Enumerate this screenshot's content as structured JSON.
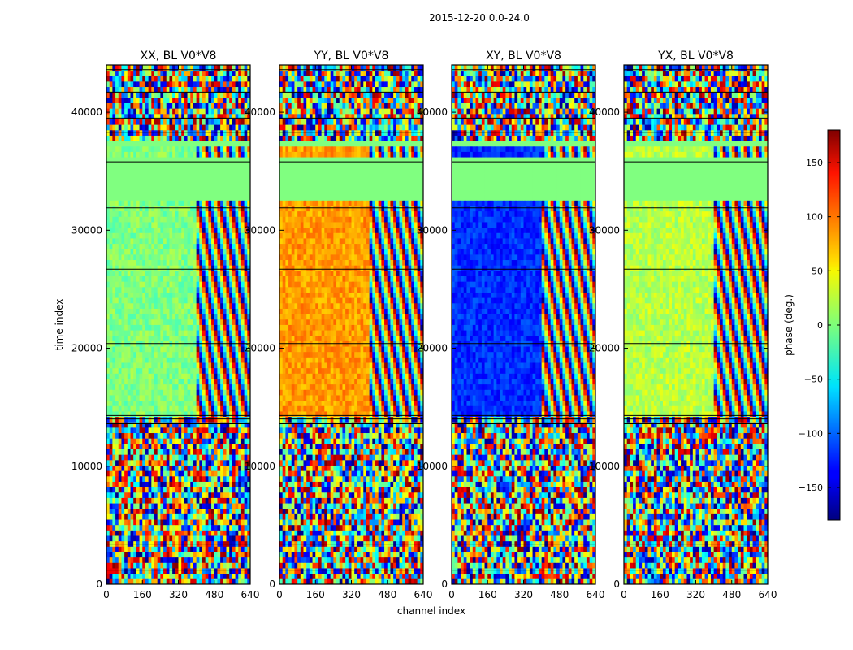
{
  "figure": {
    "suptitle": "2015-12-20 0.0-24.0"
  },
  "chart_data": [
    {
      "type": "heatmap",
      "title": "XX, BL V0*V8",
      "xlabel": "",
      "ylabel": "time index",
      "xlim": [
        0,
        640
      ],
      "ylim": [
        0,
        44000
      ],
      "xticks": [
        0,
        160,
        320,
        480,
        640
      ],
      "yticks": [
        0,
        10000,
        20000,
        30000,
        40000
      ],
      "colormap": "jet",
      "background_phase": 0,
      "fringe_from_channel": 400
    },
    {
      "type": "heatmap",
      "title": "YY, BL V0*V8",
      "xlabel": "channel index",
      "ylabel": "",
      "xlim": [
        0,
        640
      ],
      "ylim": [
        0,
        44000
      ],
      "xticks": [
        0,
        160,
        320,
        480,
        640
      ],
      "yticks": [
        0,
        10000,
        20000,
        30000,
        40000
      ],
      "colormap": "jet",
      "background_phase": 80,
      "fringe_from_channel": 400
    },
    {
      "type": "heatmap",
      "title": "XY, BL V0*V8",
      "xlabel": "",
      "ylabel": "",
      "xlim": [
        0,
        640
      ],
      "ylim": [
        0,
        44000
      ],
      "xticks": [
        0,
        160,
        320,
        480,
        640
      ],
      "yticks": [
        0,
        10000,
        20000,
        30000,
        40000
      ],
      "colormap": "jet",
      "background_phase": -120,
      "fringe_from_channel": 400
    },
    {
      "type": "heatmap",
      "title": "YX, BL V0*V8",
      "xlabel": "",
      "ylabel": "",
      "xlim": [
        0,
        640
      ],
      "ylim": [
        0,
        44000
      ],
      "xticks": [
        0,
        160,
        320,
        480,
        640
      ],
      "yticks": [
        0,
        10000,
        20000,
        30000,
        40000
      ],
      "colormap": "jet",
      "background_phase": 20,
      "fringe_from_channel": 400
    }
  ],
  "colorbar": {
    "label": "phase (deg.)",
    "range": [
      -180,
      180
    ],
    "ticks": [
      -150,
      -100,
      -50,
      0,
      50,
      100,
      150
    ],
    "tick_labels": [
      "−150",
      "−100",
      "−50",
      "0",
      "50",
      "100",
      "150"
    ],
    "colormap": "jet"
  },
  "colors": {
    "frame": "#000000",
    "flagged": "#80ff80"
  }
}
